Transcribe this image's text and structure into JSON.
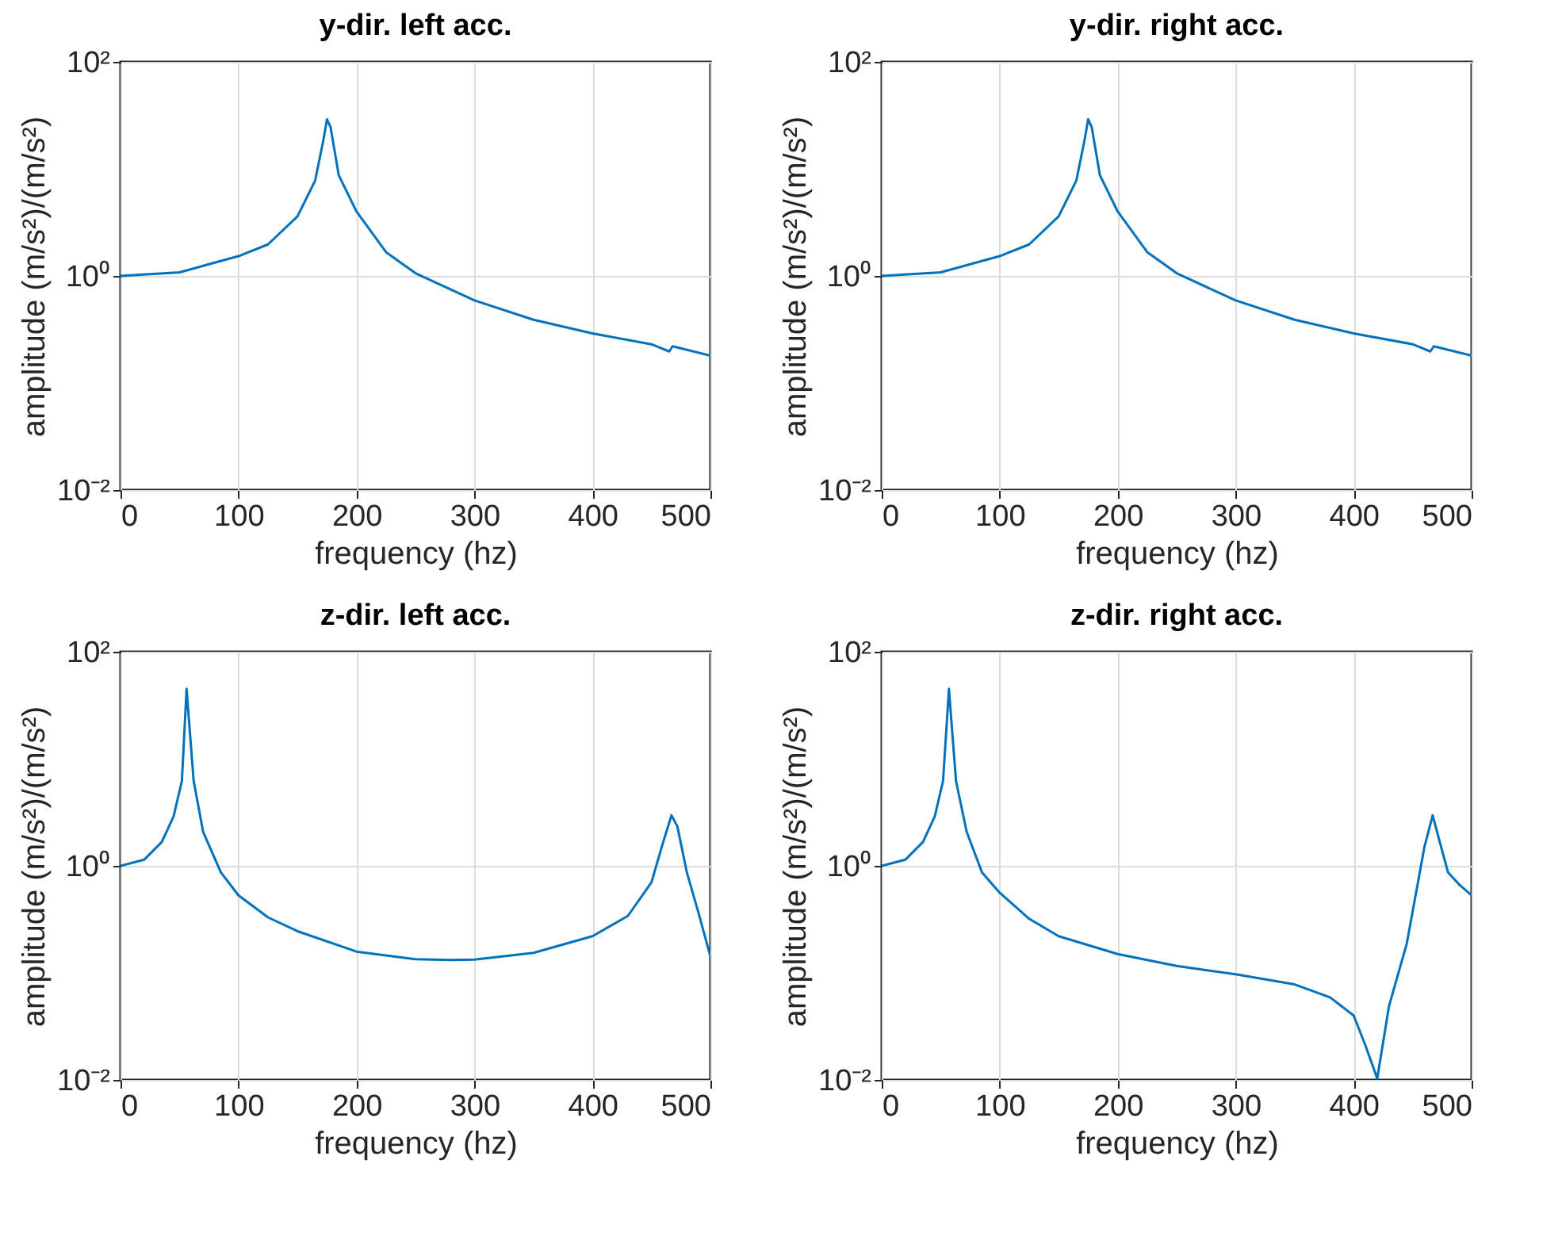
{
  "chart_data": [
    {
      "type": "line",
      "title": "y-dir. left acc.",
      "xlabel": "frequency (hz)",
      "ylabel": "amplitude (m/s²)/(m/s²)",
      "log": "y",
      "grid": true,
      "xlim": [
        0,
        500
      ],
      "xticks": [
        0,
        100,
        200,
        300,
        400,
        500
      ],
      "ylim": [
        0.01,
        100
      ],
      "yticks": [
        {
          "value": 0.01,
          "label": "10⁻²"
        },
        {
          "value": 1,
          "label": "10⁰"
        },
        {
          "value": 100,
          "label": "10²"
        }
      ],
      "series": [
        {
          "color": "#0072bd",
          "x": [
            0,
            50,
            100,
            125,
            150,
            165,
            172,
            175,
            178,
            185,
            200,
            225,
            250,
            300,
            350,
            400,
            450,
            465,
            468,
            500
          ],
          "values": [
            1.0,
            1.08,
            1.53,
            1.97,
            3.6,
            7.8,
            18.7,
            29,
            24.6,
            8.7,
            4.0,
            1.67,
            1.06,
            0.59,
            0.39,
            0.29,
            0.23,
            0.197,
            0.22,
            0.18
          ]
        }
      ]
    },
    {
      "type": "line",
      "title": "y-dir. right acc.",
      "xlabel": "frequency (hz)",
      "ylabel": "amplitude (m/s²)/(m/s²)",
      "log": "y",
      "grid": true,
      "xlim": [
        0,
        500
      ],
      "xticks": [
        0,
        100,
        200,
        300,
        400,
        500
      ],
      "ylim": [
        0.01,
        100
      ],
      "yticks": [
        {
          "value": 0.01,
          "label": "10⁻²"
        },
        {
          "value": 1,
          "label": "10⁰"
        },
        {
          "value": 100,
          "label": "10²"
        }
      ],
      "series": [
        {
          "color": "#0072bd",
          "x": [
            0,
            50,
            100,
            125,
            150,
            165,
            172,
            175,
            178,
            185,
            200,
            225,
            250,
            300,
            350,
            400,
            450,
            465,
            468,
            500
          ],
          "values": [
            1.0,
            1.08,
            1.53,
            1.97,
            3.6,
            7.8,
            18.7,
            29,
            24.6,
            8.7,
            4.0,
            1.67,
            1.06,
            0.59,
            0.39,
            0.29,
            0.23,
            0.197,
            0.22,
            0.18
          ]
        }
      ]
    },
    {
      "type": "line",
      "title": "z-dir. left acc.",
      "xlabel": "frequency (hz)",
      "ylabel": "amplitude (m/s²)/(m/s²)",
      "log": "y",
      "grid": true,
      "xlim": [
        0,
        500
      ],
      "xticks": [
        0,
        100,
        200,
        300,
        400,
        500
      ],
      "ylim": [
        0.01,
        100
      ],
      "yticks": [
        {
          "value": 0.01,
          "label": "10⁻²"
        },
        {
          "value": 1,
          "label": "10⁰"
        },
        {
          "value": 100,
          "label": "10²"
        }
      ],
      "series": [
        {
          "color": "#0072bd",
          "x": [
            0,
            20,
            35,
            45,
            52,
            56,
            58,
            62,
            70,
            85,
            100,
            125,
            150,
            200,
            250,
            280,
            300,
            350,
            400,
            430,
            450,
            460,
            467,
            472,
            480,
            490,
            500
          ],
          "values": [
            1.0,
            1.14,
            1.67,
            2.9,
            6.2,
            45,
            23,
            6.2,
            2.08,
            0.87,
            0.53,
            0.33,
            0.245,
            0.158,
            0.134,
            0.132,
            0.133,
            0.154,
            0.22,
            0.34,
            0.7,
            1.67,
            2.96,
            2.33,
            0.87,
            0.36,
            0.142
          ]
        }
      ]
    },
    {
      "type": "line",
      "title": "z-dir. right acc.",
      "xlabel": "frequency (hz)",
      "ylabel": "amplitude (m/s²)/(m/s²)",
      "log": "y",
      "grid": true,
      "xlim": [
        0,
        500
      ],
      "xticks": [
        0,
        100,
        200,
        300,
        400,
        500
      ],
      "ylim": [
        0.01,
        100
      ],
      "yticks": [
        {
          "value": 0.01,
          "label": "10⁻²"
        },
        {
          "value": 1,
          "label": "10⁰"
        },
        {
          "value": 100,
          "label": "10²"
        }
      ],
      "series": [
        {
          "color": "#0072bd",
          "x": [
            0,
            20,
            35,
            45,
            52,
            57,
            59,
            63,
            72,
            85,
            100,
            125,
            150,
            200,
            250,
            300,
            350,
            380,
            400,
            410,
            420,
            430,
            445,
            460,
            467,
            473,
            480,
            490,
            500
          ],
          "values": [
            1.0,
            1.14,
            1.67,
            2.9,
            6.2,
            45,
            23,
            6.2,
            2.08,
            0.87,
            0.56,
            0.32,
            0.22,
            0.15,
            0.116,
            0.097,
            0.078,
            0.059,
            0.04,
            0.021,
            0.0103,
            0.049,
            0.187,
            1.5,
            2.96,
            1.67,
            0.87,
            0.66,
            0.53
          ]
        }
      ]
    }
  ]
}
